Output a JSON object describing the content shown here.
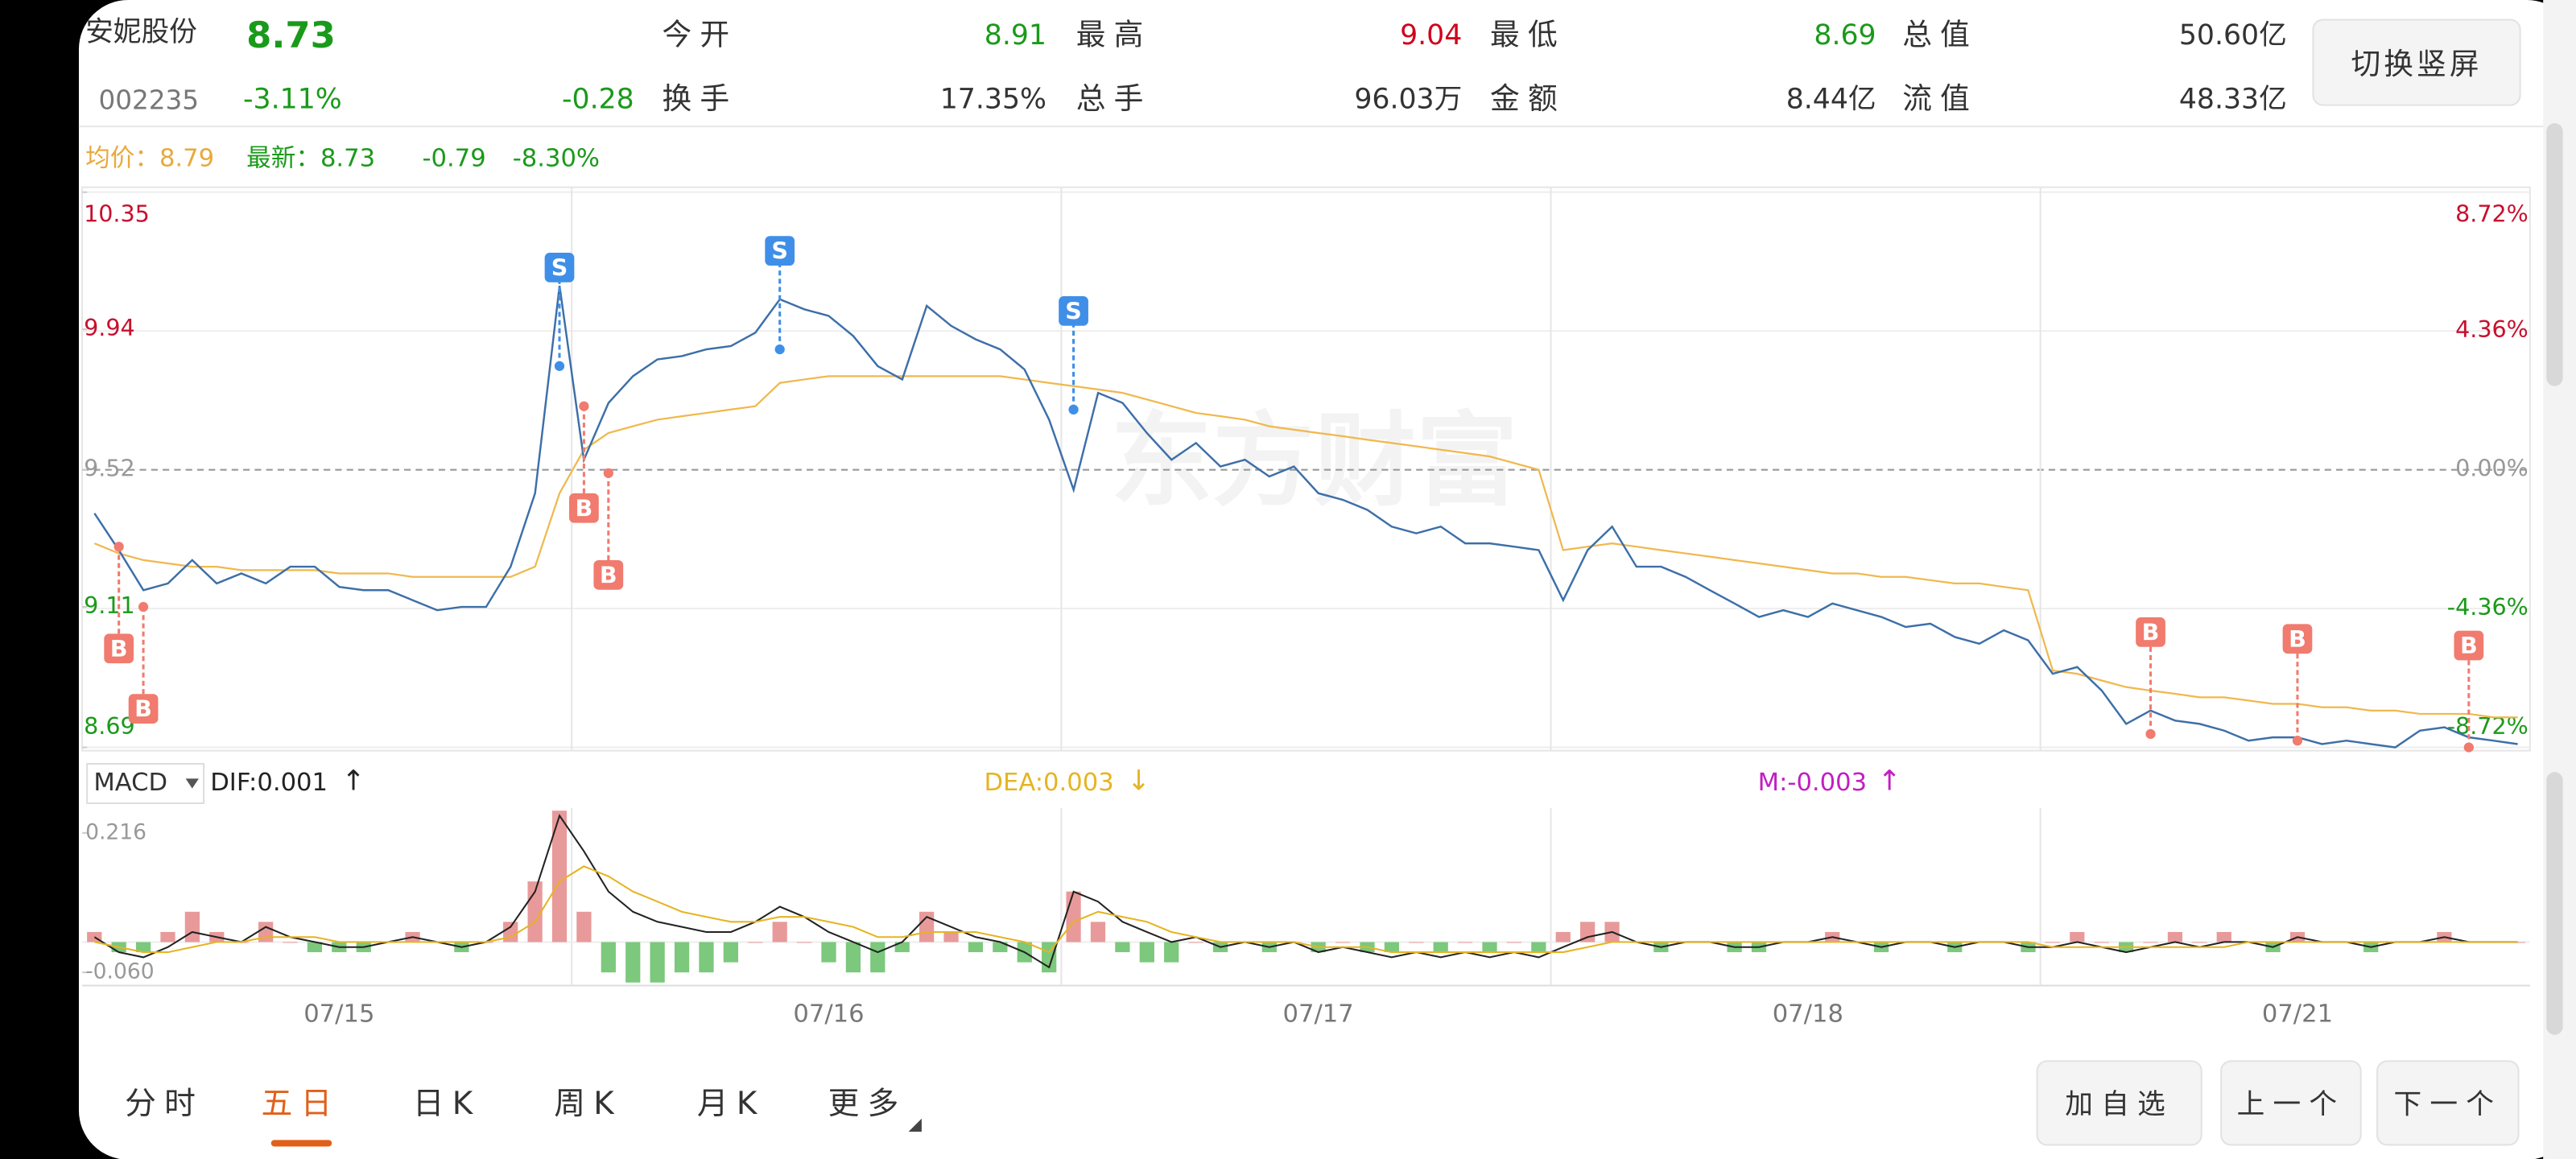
{
  "header": {
    "name": "安妮股份",
    "price": "8.73",
    "code": "002235",
    "change_pct": "-3.11%",
    "change": "-0.28",
    "stats": [
      {
        "label": "今开",
        "value": "8.91"
      },
      {
        "label": "最高",
        "value": "9.04"
      },
      {
        "label": "最低",
        "value": "8.69"
      },
      {
        "label": "总值",
        "value": "50.60亿"
      },
      {
        "label": "换手",
        "value": "17.35%"
      },
      {
        "label": "总手",
        "value": "96.03万"
      },
      {
        "label": "金额",
        "value": "8.44亿"
      },
      {
        "label": "流值",
        "value": "48.33亿"
      }
    ],
    "button": "切换竖屏"
  },
  "chart_data": [
    {
      "type": "line",
      "legend_texts": [
        "均价：8.79",
        "最新：8.73",
        "-0.79",
        "-8.30%"
      ],
      "watermark": "东方财富",
      "categories": [
        null,
        null,
        null,
        null,
        null,
        null,
        null,
        null,
        null,
        null,
        "07/15",
        null,
        null,
        null,
        null,
        null,
        null,
        null,
        null,
        null,
        null,
        null,
        null,
        null,
        null,
        null,
        null,
        null,
        null,
        null,
        "07/16",
        null,
        null,
        null,
        null,
        null,
        null,
        null,
        null,
        null,
        null,
        null,
        null,
        null,
        null,
        null,
        null,
        null,
        null,
        null,
        "07/17",
        null,
        null,
        null,
        null,
        null,
        null,
        null,
        null,
        null,
        null,
        null,
        null,
        null,
        null,
        null,
        null,
        null,
        null,
        null,
        "07/18",
        null,
        null,
        null,
        null,
        null,
        null,
        null,
        null,
        null,
        null,
        null,
        null,
        null,
        null,
        null,
        null,
        null,
        null,
        null,
        "07/21",
        null,
        null,
        null,
        null,
        null,
        null,
        null,
        null,
        null
      ],
      "ylim": [
        8.69,
        10.35
      ],
      "yticks": [
        10.35,
        9.94,
        9.52,
        9.11,
        8.69
      ],
      "y2lim": [
        -8.72,
        8.72
      ],
      "y2ticks": [
        {
          "value": 8.72,
          "label": "8.72%"
        },
        {
          "value": 4.36,
          "label": "4.36%"
        },
        {
          "value": 0,
          "label": "0.00%"
        },
        {
          "value": -4.36,
          "label": "-4.36%"
        },
        {
          "value": -8.72,
          "label": "-8.72%"
        }
      ],
      "grid": true,
      "series": [
        {
          "color": "#3d6fa8",
          "values": [
            9.39,
            9.28,
            9.16,
            9.18,
            9.25,
            9.18,
            9.21,
            9.18,
            9.23,
            9.23,
            9.17,
            9.16,
            9.16,
            9.13,
            9.1,
            9.11,
            9.11,
            9.23,
            9.45,
            10.07,
            9.55,
            9.72,
            9.8,
            9.85,
            9.86,
            9.88,
            9.89,
            9.93,
            10.03,
            10.0,
            9.98,
            9.92,
            9.83,
            9.79,
            10.01,
            9.95,
            9.91,
            9.88,
            9.82,
            9.67,
            9.46,
            9.75,
            9.72,
            9.63,
            9.55,
            9.6,
            9.53,
            9.55,
            9.5,
            9.53,
            9.45,
            9.43,
            9.4,
            9.35,
            9.33,
            9.35,
            9.3,
            9.3,
            9.29,
            9.28,
            9.13,
            9.28,
            9.35,
            9.23,
            9.23,
            9.2,
            9.16,
            9.12,
            9.08,
            9.1,
            9.08,
            9.12,
            9.1,
            9.08,
            9.05,
            9.06,
            9.02,
            9.0,
            9.04,
            9.01,
            8.91,
            8.93,
            8.86,
            8.76,
            8.8,
            8.77,
            8.76,
            8.74,
            8.71,
            8.72,
            8.72,
            8.7,
            8.71,
            8.7,
            8.69,
            8.74,
            8.75,
            8.72,
            8.71,
            8.7
          ]
        },
        {
          "color": "#f0b84e",
          "values": [
            9.3,
            9.27,
            9.25,
            9.24,
            9.23,
            9.23,
            9.22,
            9.22,
            9.22,
            9.22,
            9.21,
            9.21,
            9.21,
            9.2,
            9.2,
            9.2,
            9.2,
            9.2,
            9.23,
            9.45,
            9.58,
            9.63,
            9.65,
            9.67,
            9.68,
            9.69,
            9.7,
            9.71,
            9.78,
            9.79,
            9.8,
            9.8,
            9.8,
            9.8,
            9.8,
            9.8,
            9.8,
            9.8,
            9.79,
            9.78,
            9.77,
            9.76,
            9.75,
            9.73,
            9.71,
            9.69,
            9.68,
            9.67,
            9.65,
            9.64,
            9.63,
            9.62,
            9.61,
            9.6,
            9.59,
            9.58,
            9.57,
            9.56,
            9.54,
            9.52,
            9.28,
            9.29,
            9.3,
            9.29,
            9.28,
            9.27,
            9.26,
            9.25,
            9.24,
            9.23,
            9.22,
            9.21,
            9.21,
            9.2,
            9.2,
            9.19,
            9.18,
            9.18,
            9.17,
            9.16,
            8.92,
            8.91,
            8.89,
            8.87,
            8.86,
            8.85,
            8.84,
            8.84,
            8.83,
            8.82,
            8.82,
            8.81,
            8.81,
            8.8,
            8.8,
            8.79,
            8.79,
            8.79,
            8.78,
            8.78
          ]
        }
      ],
      "markers": {
        "buy": {
          "label": "B",
          "color": "#f07b6e",
          "values": [
            null,
            9.29,
            9.11,
            null,
            null,
            null,
            null,
            null,
            null,
            null,
            null,
            null,
            null,
            null,
            null,
            null,
            null,
            null,
            null,
            null,
            9.71,
            9.51,
            null,
            null,
            null,
            null,
            null,
            null,
            null,
            null,
            null,
            null,
            null,
            null,
            null,
            null,
            null,
            null,
            null,
            null,
            null,
            null,
            null,
            null,
            null,
            null,
            null,
            null,
            null,
            null,
            null,
            null,
            null,
            null,
            null,
            null,
            null,
            null,
            null,
            null,
            null,
            null,
            null,
            null,
            null,
            null,
            null,
            null,
            null,
            null,
            null,
            null,
            null,
            null,
            null,
            null,
            null,
            null,
            null,
            null,
            null,
            null,
            null,
            null,
            8.73,
            null,
            null,
            null,
            null,
            null,
            8.71,
            null,
            null,
            null,
            null,
            null,
            null,
            8.69,
            null,
            null
          ]
        },
        "sell": {
          "label": "S",
          "color": "#3f8fe8",
          "values": [
            null,
            null,
            null,
            null,
            null,
            null,
            null,
            null,
            null,
            null,
            null,
            null,
            null,
            null,
            null,
            null,
            null,
            null,
            null,
            9.83,
            null,
            null,
            null,
            null,
            null,
            null,
            null,
            null,
            9.88,
            null,
            null,
            null,
            null,
            null,
            null,
            null,
            null,
            null,
            null,
            null,
            9.7,
            null,
            null,
            null,
            null,
            null,
            null,
            null,
            null,
            null,
            null,
            null,
            null,
            null,
            null,
            null,
            null,
            null,
            null,
            null,
            null,
            null,
            null,
            null,
            null,
            null,
            null,
            null,
            null,
            null,
            null,
            null,
            null,
            null,
            null,
            null,
            null,
            null,
            null,
            null,
            null,
            null,
            null,
            null,
            null,
            null,
            null,
            null,
            null,
            null,
            null,
            null,
            null,
            null,
            null,
            null,
            null,
            null,
            null,
            null
          ]
        }
      }
    },
    {
      "type": "macd",
      "indicator": "MACD",
      "ylim": [
        -0.086,
        0.265
      ],
      "yticks": [
        0.216,
        {
          "value": -0.06,
          "label": "-0.060"
        }
      ],
      "bar_colors": {
        "up": "#e89a9a",
        "down": "#7cc87c"
      },
      "series": [
        {
          "name": "DIF:0.001",
          "trend": "↑",
          "color": "#222222",
          "values": [
            0.01,
            -0.02,
            -0.03,
            -0.01,
            0.02,
            0.01,
            0,
            0.03,
            0.01,
            0,
            -0.01,
            -0.01,
            0,
            0.01,
            0,
            -0.01,
            0,
            0.03,
            0.1,
            0.25,
            0.18,
            0.1,
            0.06,
            0.04,
            0.03,
            0.02,
            0.02,
            0.04,
            0.07,
            0.05,
            0.02,
            0,
            -0.02,
            0,
            0.05,
            0.03,
            0.01,
            0,
            -0.02,
            -0.05,
            0.1,
            0.08,
            0.04,
            0.02,
            0,
            0.01,
            -0.01,
            0,
            -0.01,
            0,
            -0.02,
            -0.01,
            -0.02,
            -0.03,
            -0.02,
            -0.03,
            -0.02,
            -0.03,
            -0.02,
            -0.03,
            -0.01,
            0.01,
            0.02,
            0,
            -0.01,
            0,
            0,
            -0.01,
            -0.01,
            0,
            0,
            0.01,
            0,
            -0.01,
            0,
            0,
            -0.01,
            0,
            0,
            -0.01,
            -0.01,
            0,
            -0.01,
            -0.02,
            -0.01,
            0,
            -0.01,
            0,
            0,
            -0.01,
            0.01,
            0,
            0,
            -0.01,
            0,
            0,
            0.01,
            0,
            0,
            0
          ]
        },
        {
          "name": "DEA:0.003",
          "trend": "↓",
          "color": "#e6b422",
          "values": [
            0,
            -0.01,
            -0.02,
            -0.02,
            -0.01,
            0,
            0,
            0.01,
            0.01,
            0.01,
            0,
            0,
            0,
            0,
            0,
            0,
            0,
            0.01,
            0.04,
            0.12,
            0.15,
            0.13,
            0.1,
            0.08,
            0.06,
            0.05,
            0.04,
            0.04,
            0.05,
            0.05,
            0.04,
            0.03,
            0.01,
            0.01,
            0.02,
            0.02,
            0.02,
            0.01,
            0,
            -0.02,
            0.04,
            0.06,
            0.05,
            0.04,
            0.02,
            0.01,
            0,
            0,
            0,
            0,
            -0.01,
            -0.01,
            -0.01,
            -0.02,
            -0.02,
            -0.02,
            -0.02,
            -0.02,
            -0.02,
            -0.02,
            -0.02,
            -0.01,
            0,
            0,
            0,
            0,
            0,
            0,
            0,
            0,
            0,
            0,
            0,
            0,
            0,
            0,
            0,
            0,
            0,
            0,
            -0.01,
            -0.01,
            -0.01,
            -0.01,
            -0.01,
            -0.01,
            -0.01,
            -0.01,
            0,
            0,
            0,
            0,
            0,
            0,
            0,
            0,
            0,
            0,
            0,
            0
          ]
        },
        {
          "name": "M:-0.003",
          "trend": "↑",
          "color": "#c21ec2",
          "bars": true,
          "values": [
            0.02,
            -0.02,
            -0.02,
            0.02,
            0.06,
            0.02,
            0,
            0.04,
            0,
            -0.02,
            -0.02,
            -0.02,
            0,
            0.02,
            0,
            -0.02,
            0,
            0.04,
            0.12,
            0.26,
            0.06,
            -0.06,
            -0.08,
            -0.08,
            -0.06,
            -0.06,
            -0.04,
            0,
            0.04,
            0,
            -0.04,
            -0.06,
            -0.06,
            -0.02,
            0.06,
            0.02,
            -0.02,
            -0.02,
            -0.04,
            -0.06,
            0.1,
            0.04,
            -0.02,
            -0.04,
            -0.04,
            0,
            -0.02,
            0,
            -0.02,
            0,
            -0.02,
            0,
            -0.02,
            -0.02,
            0,
            -0.02,
            0,
            -0.02,
            0,
            -0.02,
            0.02,
            0.04,
            0.04,
            0,
            -0.02,
            0,
            0,
            -0.02,
            -0.02,
            0,
            0,
            0.02,
            0,
            -0.02,
            0,
            0,
            -0.02,
            0,
            0,
            -0.02,
            0,
            0.02,
            0,
            -0.02,
            0,
            0.02,
            0,
            0.02,
            0,
            -0.02,
            0.02,
            0,
            0,
            -0.02,
            0,
            0,
            0.02,
            0,
            0,
            0
          ]
        }
      ]
    }
  ],
  "tabs": {
    "items": [
      "分时",
      "五日",
      "日K",
      "周K",
      "月K",
      "更多"
    ],
    "active": 1
  },
  "buttons": [
    "加自选",
    "上一个",
    "下一个"
  ]
}
